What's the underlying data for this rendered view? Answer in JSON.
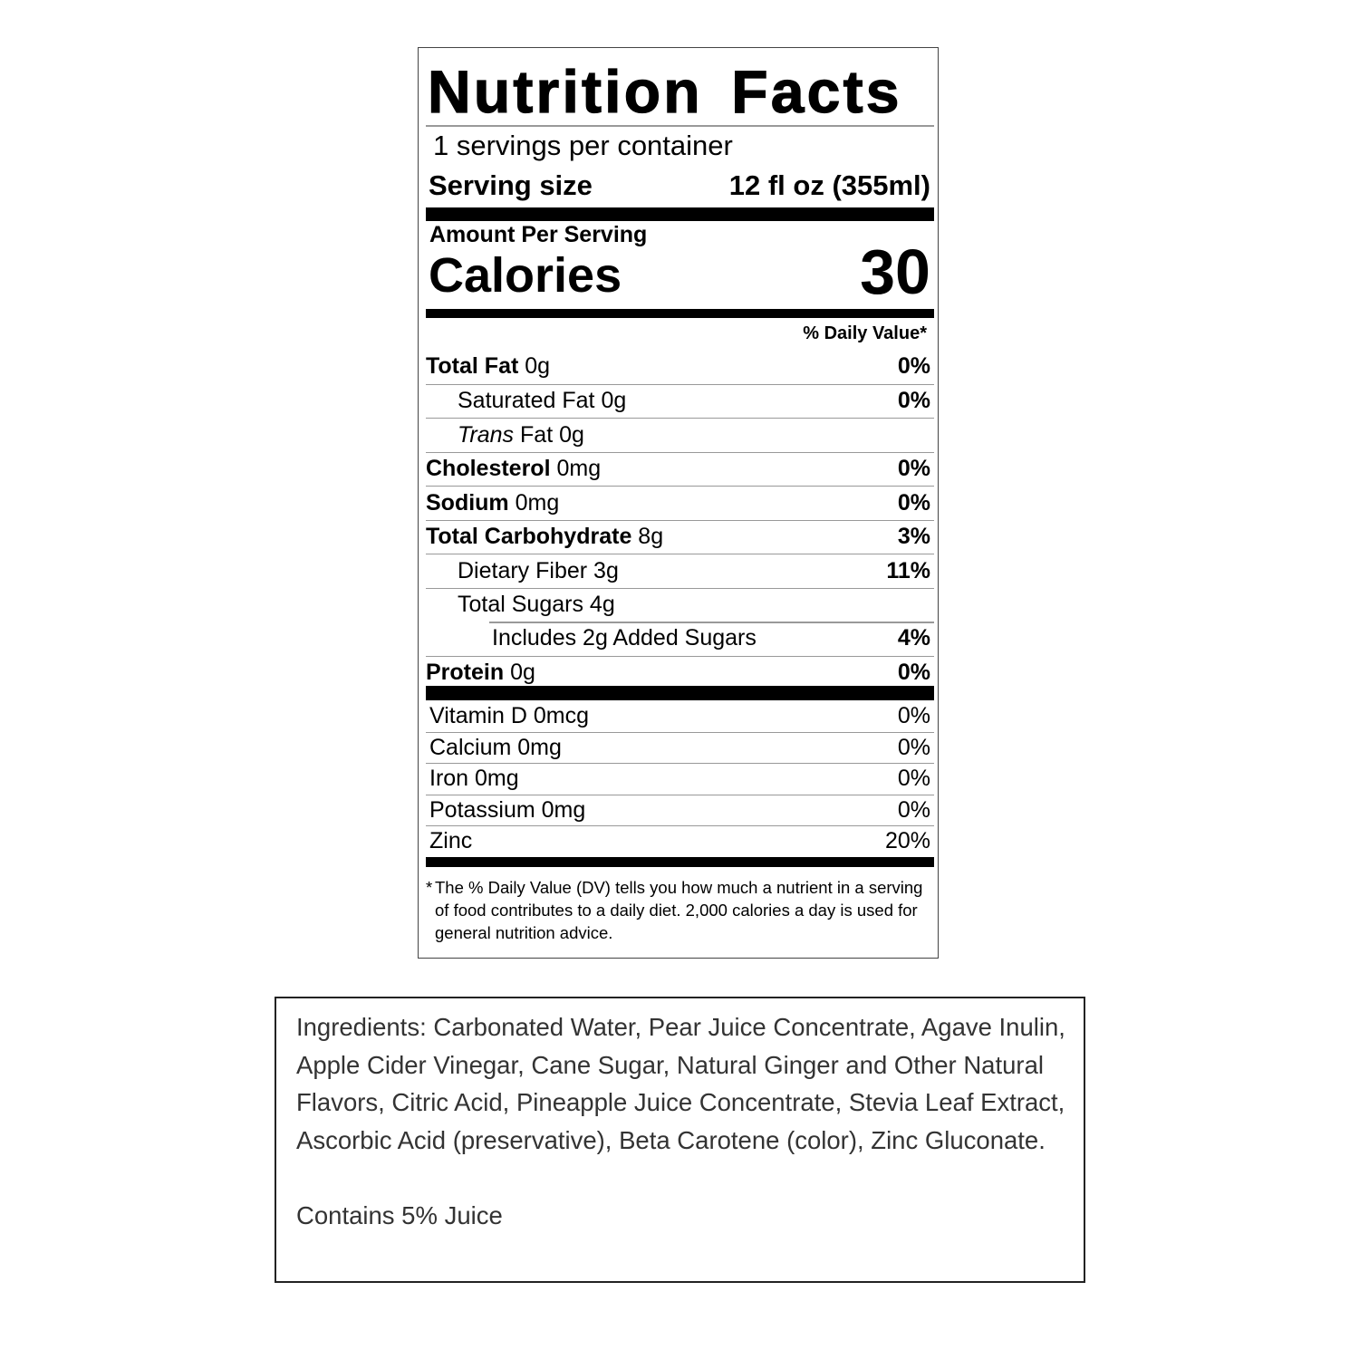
{
  "label": {
    "title": "Nutrition Facts",
    "servings_per_container": "1 servings per container",
    "serving_size_label": "Serving size",
    "serving_size_value": "12 fl oz (355ml)",
    "amount_per_serving": "Amount Per Serving",
    "calories_label": "Calories",
    "calories_value": "30",
    "daily_value_header": "% Daily Value*",
    "nutrients": [
      {
        "name": "Total Fat",
        "amount": "0g",
        "dv": "0%",
        "bold": true,
        "indent": 0
      },
      {
        "name": "Saturated Fat",
        "amount": "0g",
        "dv": "0%",
        "bold": false,
        "indent": 1
      },
      {
        "italic_prefix": "Trans",
        "name": "Fat",
        "amount": "0g",
        "dv": "",
        "bold": false,
        "indent": 1
      },
      {
        "name": "Cholesterol",
        "amount": "0mg",
        "dv": "0%",
        "bold": true,
        "indent": 0
      },
      {
        "name": "Sodium",
        "amount": "0mg",
        "dv": "0%",
        "bold": true,
        "indent": 0
      },
      {
        "name": "Total Carbohydrate",
        "amount": "8g",
        "dv": "3%",
        "bold": true,
        "indent": 0
      },
      {
        "name": "Dietary Fiber",
        "amount": "3g",
        "dv": "11%",
        "bold": false,
        "indent": 1
      },
      {
        "name": "Total Sugars",
        "amount": "4g",
        "dv": "",
        "bold": false,
        "indent": 1
      },
      {
        "name": "Includes 2g Added Sugars",
        "amount": "",
        "dv": "4%",
        "bold": false,
        "indent": 2
      },
      {
        "name": "Protein",
        "amount": "0g",
        "dv": "0%",
        "bold": true,
        "indent": 0
      }
    ],
    "vitamins": [
      {
        "name": "Vitamin D 0mcg",
        "dv": "0%"
      },
      {
        "name": "Calcium 0mg",
        "dv": "0%"
      },
      {
        "name": "Iron 0mg",
        "dv": "0%"
      },
      {
        "name": "Potassium 0mg",
        "dv": "0%"
      },
      {
        "name": "Zinc",
        "dv": "20%"
      }
    ],
    "footnote_marker": "*",
    "footnote": "The % Daily Value (DV) tells you how much a nutrient in a serving of food contributes to a daily diet. 2,000 calories a day is used for general nutrition advice."
  },
  "ingredients": {
    "text": "Ingredients: Carbonated Water, Pear Juice Concentrate, Agave Inulin, Apple Cider Vinegar, Cane Sugar, Natural Ginger and Other Natural Flavors, Citric Acid, Pineapple Juice Concentrate, Stevia Leaf Extract, Ascorbic Acid (preservative), Beta Carotene (color), Zinc Gluconate.",
    "juice_statement": "Contains 5% Juice",
    "text_color": "#333333"
  }
}
